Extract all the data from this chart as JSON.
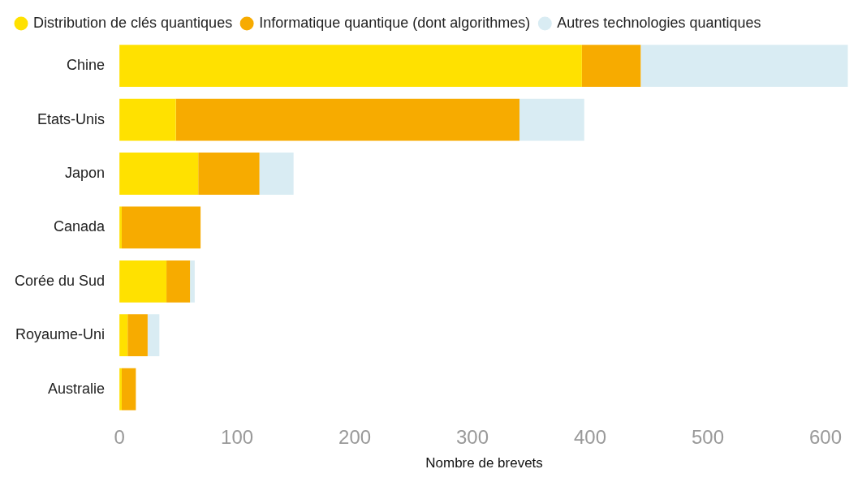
{
  "chart_data": {
    "type": "bar",
    "orientation": "horizontal",
    "stacked": true,
    "xlabel": "Nombre de brevets",
    "categories": [
      "Chine",
      "Etats-Unis",
      "Japon",
      "Canada",
      "Corée du Sud",
      "Royaume-Uni",
      "Australie"
    ],
    "series": [
      {
        "name": "Distribution de clés quantiques",
        "color": "#ffe100",
        "values": [
          393,
          48,
          67,
          2,
          40,
          7,
          2
        ]
      },
      {
        "name": "Informatique quantique (dont algorithmes)",
        "color": "#f7ab00",
        "values": [
          50,
          292,
          52,
          67,
          20,
          17,
          12
        ]
      },
      {
        "name": "Autres technologies quantiques",
        "color": "#d9ecf3",
        "values": [
          176,
          55,
          29,
          null,
          4,
          10,
          0
        ]
      }
    ],
    "xlim": [
      0,
      620
    ],
    "xticks": [
      0,
      100,
      200,
      300,
      400,
      500,
      600
    ],
    "grid": false,
    "legend": "top left"
  }
}
